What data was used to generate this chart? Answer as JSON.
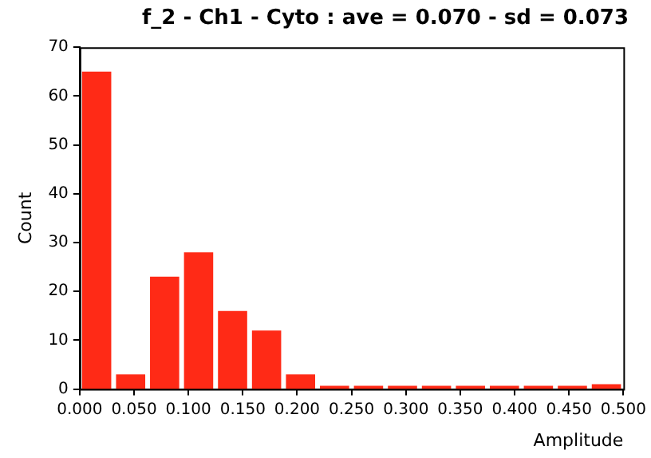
{
  "chart_data": {
    "type": "histogram",
    "title": "f_2 - Ch1 - Cyto : ave = 0.070 - sd = 0.073",
    "xlabel": "Amplitude",
    "ylabel": "Count",
    "bins": [
      0,
      0.03125,
      0.0625,
      0.09375,
      0.125,
      0.15625,
      0.1875,
      0.21875,
      0.25,
      0.28125,
      0.3125,
      0.34375,
      0.375,
      0.40625,
      0.4375,
      0.46875,
      0.5
    ],
    "values": [
      65,
      3,
      23,
      28,
      16,
      12,
      3,
      0,
      0,
      0,
      0,
      0,
      0,
      0,
      0,
      1
    ],
    "color": "#ff2a16",
    "xlim": [
      0,
      0.5
    ],
    "xticks": [
      {
        "value": 0,
        "label": "0.000"
      },
      {
        "value": 0.05,
        "label": "0.050"
      },
      {
        "value": 0.1,
        "label": "0.100"
      },
      {
        "value": 0.15,
        "label": "0.150"
      },
      {
        "value": 0.2,
        "label": "0.200"
      },
      {
        "value": 0.25,
        "label": "0.250"
      },
      {
        "value": 0.3,
        "label": "0.300"
      },
      {
        "value": 0.35,
        "label": "0.350"
      },
      {
        "value": 0.4,
        "label": "0.400"
      },
      {
        "value": 0.45,
        "label": "0.450"
      },
      {
        "value": 0.5,
        "label": "0.500"
      }
    ],
    "ylim": [
      0,
      70
    ],
    "yticks": [
      0,
      10,
      20,
      30,
      40,
      50,
      60,
      70
    ],
    "grid": false,
    "legend": false
  }
}
